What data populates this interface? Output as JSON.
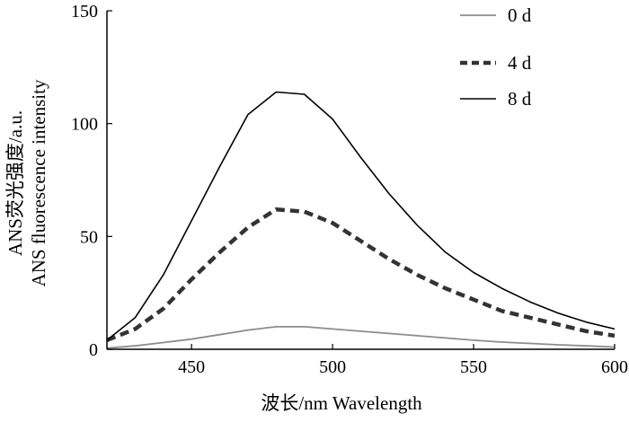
{
  "chart_data": {
    "type": "line",
    "xlabel": "波长/nm  Wavelength",
    "ylabel_lines": [
      "ANS荧光强度/a.u.",
      "ANS fluorescence intensity"
    ],
    "xlim": [
      420,
      600
    ],
    "ylim": [
      0,
      150
    ],
    "x_ticks": [
      "450",
      "500",
      "550",
      "600"
    ],
    "y_ticks": [
      "0",
      "50",
      "100",
      "150"
    ],
    "legend_position": "top-right",
    "series": [
      {
        "name": "0 d",
        "color": "#8c8c8c",
        "style": "solid",
        "x": [
          420,
          430,
          440,
          450,
          460,
          470,
          480,
          490,
          500,
          510,
          520,
          530,
          540,
          550,
          560,
          570,
          580,
          590,
          600
        ],
        "y": [
          0.5,
          1.5,
          3,
          4.5,
          6.5,
          8.5,
          10,
          10,
          9,
          8,
          7,
          6,
          5,
          4,
          3.2,
          2.6,
          2,
          1.5,
          1
        ]
      },
      {
        "name": "4 d",
        "color": "#333333",
        "style": "dashed",
        "x": [
          420,
          430,
          440,
          450,
          460,
          470,
          480,
          490,
          500,
          510,
          520,
          530,
          540,
          550,
          560,
          570,
          580,
          590,
          600
        ],
        "y": [
          4,
          9,
          18,
          31,
          43,
          54,
          62,
          61,
          56,
          48,
          40,
          33,
          27,
          22,
          17,
          14,
          11,
          8,
          6
        ]
      },
      {
        "name": "8 d",
        "color": "#000000",
        "style": "solid",
        "x": [
          420,
          430,
          440,
          450,
          460,
          470,
          480,
          490,
          500,
          510,
          520,
          530,
          540,
          550,
          560,
          570,
          580,
          590,
          600
        ],
        "y": [
          4,
          14,
          33,
          57,
          81,
          104,
          114,
          113,
          102,
          85,
          69,
          55,
          43,
          34,
          27,
          21,
          16,
          12,
          9
        ]
      }
    ]
  }
}
